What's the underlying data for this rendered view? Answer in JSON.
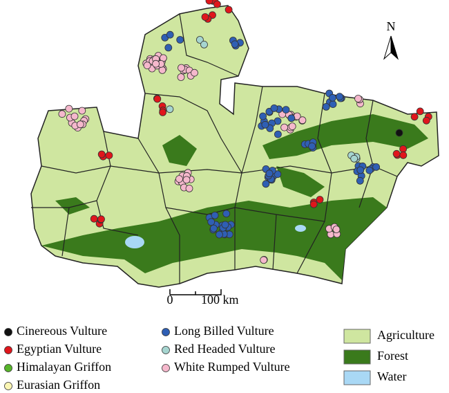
{
  "map": {
    "north_label": "N",
    "scale_bar": {
      "start": "0",
      "end": "100 km"
    },
    "species": [
      {
        "label": "Cinereous Vulture",
        "color": "#111111"
      },
      {
        "label": "Egyptian Vulture",
        "color": "#e0161c"
      },
      {
        "label": "Himalayan Griffon",
        "color": "#57b52a"
      },
      {
        "label": "Eurasian Griffon",
        "color": "#fbf6b4"
      },
      {
        "label": "Long Billed Vulture",
        "color": "#2f5fb4"
      },
      {
        "label": "Red Headed Vulture",
        "color": "#a6d5d0"
      },
      {
        "label": "White Rumped Vulture",
        "color": "#f5b8cc"
      }
    ],
    "land_cover": [
      {
        "label": "Agriculture",
        "color": "#cfe6a0"
      },
      {
        "label": "Forest",
        "color": "#3a7a1c"
      },
      {
        "label": "Water",
        "color": "#a9d8f5"
      }
    ]
  }
}
